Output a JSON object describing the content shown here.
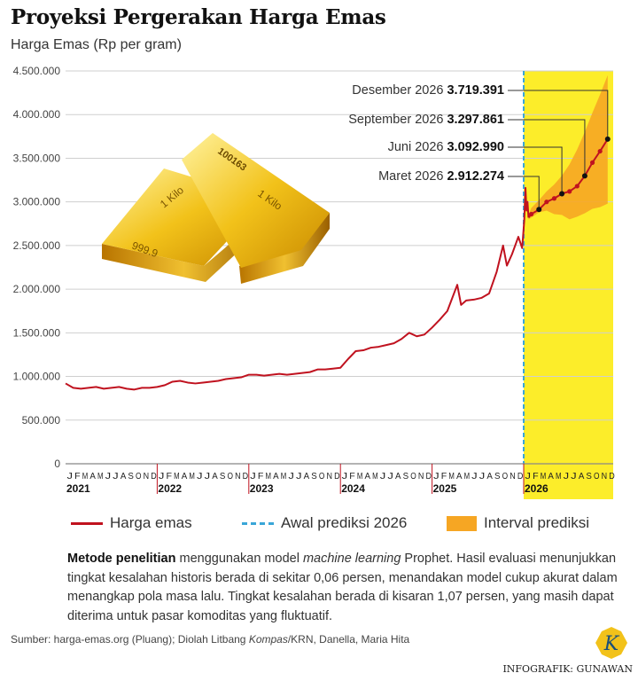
{
  "header": {
    "title": "Proyeksi Pergerakan Harga Emas",
    "subtitle": "Harga Emas (Rp per gram)"
  },
  "colors": {
    "line": "#c0121f",
    "forecast_bg": "#fced2a",
    "interval": "#f6a623",
    "start_line": "#3aa6d8",
    "grid": "#cfcfcf"
  },
  "chart_data": {
    "type": "line",
    "title": "Proyeksi Pergerakan Harga Emas",
    "ylabel": "Harga Emas (Rp per gram)",
    "ylim": [
      0,
      4500000
    ],
    "yticks": [
      "0",
      "500.000",
      "1.000.000",
      "1.500.000",
      "2.000.000",
      "2.500.000",
      "3.000.000",
      "3.500.000",
      "4.000.000",
      "4.500.000"
    ],
    "xlim": [
      "2021-01",
      "2026-12"
    ],
    "month_labels": [
      "J",
      "F",
      "M",
      "A",
      "M",
      "J",
      "J",
      "A",
      "S",
      "O",
      "N",
      "D"
    ],
    "years": [
      "2021",
      "2022",
      "2023",
      "2024",
      "2025",
      "2026"
    ],
    "grid": true,
    "forecast_start": "2026-01",
    "series": [
      {
        "name": "Harga emas",
        "kind": "historical",
        "x": [
          "2021-01-01",
          "2021-02-01",
          "2021-03-01",
          "2021-04-01",
          "2021-05-01",
          "2021-06-01",
          "2021-07-01",
          "2021-08-01",
          "2021-09-01",
          "2021-10-01",
          "2021-11-01",
          "2021-12-01",
          "2022-01-01",
          "2022-02-01",
          "2022-03-01",
          "2022-04-01",
          "2022-05-01",
          "2022-06-01",
          "2022-07-01",
          "2022-08-01",
          "2022-09-01",
          "2022-10-01",
          "2022-11-01",
          "2022-12-01",
          "2023-01-01",
          "2023-02-01",
          "2023-03-01",
          "2023-04-01",
          "2023-05-01",
          "2023-06-01",
          "2023-07-01",
          "2023-08-01",
          "2023-09-01",
          "2023-10-01",
          "2023-11-01",
          "2023-12-01",
          "2024-01-01",
          "2024-02-01",
          "2024-03-01",
          "2024-04-01",
          "2024-05-01",
          "2024-06-01",
          "2024-07-01",
          "2024-08-01",
          "2024-09-01",
          "2024-10-01",
          "2024-11-01",
          "2024-12-01",
          "2025-01-01",
          "2025-02-01",
          "2025-03-01",
          "2025-04-10",
          "2025-04-25",
          "2025-05-15",
          "2025-06-15",
          "2025-07-15",
          "2025-08-15",
          "2025-09-15",
          "2025-10-10",
          "2025-10-25",
          "2025-11-15",
          "2025-12-10",
          "2025-12-25",
          "2026-01-03",
          "2026-01-08",
          "2026-01-12",
          "2026-01-16",
          "2026-01-20"
        ],
        "values": [
          920000,
          870000,
          860000,
          870000,
          880000,
          860000,
          870000,
          880000,
          860000,
          850000,
          870000,
          870000,
          880000,
          900000,
          940000,
          950000,
          930000,
          920000,
          930000,
          940000,
          950000,
          970000,
          980000,
          990000,
          1020000,
          1020000,
          1010000,
          1020000,
          1030000,
          1020000,
          1030000,
          1040000,
          1050000,
          1080000,
          1080000,
          1090000,
          1100000,
          1200000,
          1290000,
          1300000,
          1330000,
          1340000,
          1360000,
          1380000,
          1430000,
          1500000,
          1460000,
          1480000,
          1560000,
          1650000,
          1750000,
          2050000,
          1820000,
          1870000,
          1880000,
          1900000,
          1950000,
          2200000,
          2500000,
          2270000,
          2400000,
          2600000,
          2470000,
          2780000,
          3160000,
          2900000,
          3000000,
          2820000
        ]
      },
      {
        "name": "Proyeksi",
        "kind": "forecast",
        "x": [
          "2026-01-20",
          "2026-02-01",
          "2026-03-01",
          "2026-04-01",
          "2026-05-01",
          "2026-06-01",
          "2026-07-01",
          "2026-08-01",
          "2026-09-01",
          "2026-10-01",
          "2026-11-01",
          "2026-12-01"
        ],
        "values": [
          2820000,
          2860000,
          2912274,
          3000000,
          3040000,
          3092990,
          3120000,
          3180000,
          3297861,
          3450000,
          3580000,
          3719391
        ]
      }
    ],
    "interval": {
      "name": "Interval prediksi",
      "x": [
        "2026-01-20",
        "2026-02-01",
        "2026-03-01",
        "2026-04-01",
        "2026-05-01",
        "2026-06-01",
        "2026-07-01",
        "2026-08-01",
        "2026-09-01",
        "2026-10-01",
        "2026-11-01",
        "2026-12-01"
      ],
      "upper": [
        2850000,
        2930000,
        3020000,
        3120000,
        3200000,
        3300000,
        3430000,
        3600000,
        3800000,
        4020000,
        4230000,
        4450000
      ],
      "lower": [
        2800000,
        2820000,
        2880000,
        2900000,
        2860000,
        2850000,
        2800000,
        2830000,
        2870000,
        2920000,
        2940000,
        2980000
      ]
    },
    "annotations": [
      {
        "label": "Desember 2026",
        "value": "3.719.391",
        "x": "2026-12-01",
        "y": 3719391
      },
      {
        "label": "September 2026",
        "value": "3.297.861",
        "x": "2026-09-01",
        "y": 3297861
      },
      {
        "label": "Juni 2026",
        "value": "3.092.990",
        "x": "2026-06-01",
        "y": 3092990
      },
      {
        "label": "Maret 2026",
        "value": "2.912.274",
        "x": "2026-03-01",
        "y": 2912274
      }
    ]
  },
  "legend": {
    "items": [
      "Harga emas",
      "Awal prediksi 2026",
      "Interval prediksi"
    ],
    "placement": "bottom"
  },
  "notes": {
    "method_bold": "Metode penelitian",
    "method_1": " menggunakan model ",
    "method_italic": "machine learning",
    "method_2": " Prophet. Hasil evaluasi menunjukkan tingkat kesalahan historis berada di sekitar 0,06 persen, menandakan model cukup akurat dalam menangkap pola masa lalu. Tingkat kesalahan berada di kisaran 1,07 persen, yang masih dapat diterima untuk pasar komoditas yang fluktuatif.",
    "source_1": "Sumber: harga-emas.org (Pluang); Diolah Litbang ",
    "source_italic": "Kompas",
    "source_2": "/KRN, Danella, Maria Hita",
    "credit": "INFOGRAFIK: GUNAWAN"
  },
  "illustration": {
    "bar_text_1": "100163",
    "bar_text_2": "1 Kilo",
    "bar_text_3": "999.9",
    "logo_letter": "K"
  }
}
